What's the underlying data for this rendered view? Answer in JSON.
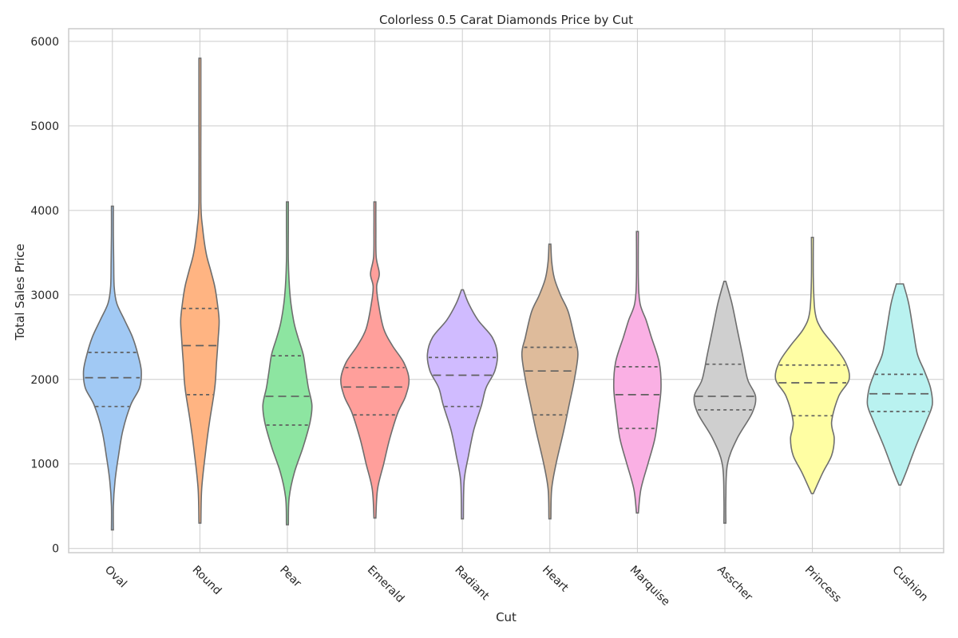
{
  "chart_data": {
    "type": "violin",
    "title": "Colorless 0.5 Carat Diamonds Price by Cut",
    "xlabel": "Cut",
    "ylabel": "Total Sales Price",
    "ylim": [
      -50,
      6150
    ],
    "yticks": [
      0,
      1000,
      2000,
      3000,
      4000,
      5000,
      6000
    ],
    "grid": true,
    "categories": [
      "Oval",
      "Round",
      "Pear",
      "Emerald",
      "Radiant",
      "Heart",
      "Marquise",
      "Asscher",
      "Princess",
      "Cushion"
    ],
    "colors": [
      "#a1c9f4",
      "#ffb482",
      "#8de5a1",
      "#ff9f9b",
      "#d0bbff",
      "#debb9b",
      "#fab0e4",
      "#cfcfcf",
      "#fffea3",
      "#b9f2f0"
    ],
    "series": [
      {
        "category": "Oval",
        "min": 220,
        "q1": 1680,
        "median": 2020,
        "q3": 2320,
        "max": 4050,
        "density": [
          [
            220,
            0.3
          ],
          [
            500,
            1
          ],
          [
            800,
            3
          ],
          [
            1100,
            7
          ],
          [
            1400,
            12
          ],
          [
            1700,
            21
          ],
          [
            1900,
            31
          ],
          [
            2100,
            33
          ],
          [
            2300,
            29
          ],
          [
            2500,
            23
          ],
          [
            2700,
            14
          ],
          [
            2900,
            5
          ],
          [
            3100,
            2
          ],
          [
            3400,
            1.5
          ],
          [
            3700,
            1
          ],
          [
            4050,
            0.3
          ]
        ]
      },
      {
        "category": "Round",
        "min": 300,
        "q1": 1820,
        "median": 2400,
        "q3": 2840,
        "max": 5800,
        "density": [
          [
            300,
            0.3
          ],
          [
            700,
            2
          ],
          [
            1100,
            6
          ],
          [
            1500,
            11
          ],
          [
            1900,
            17
          ],
          [
            2200,
            19
          ],
          [
            2500,
            21
          ],
          [
            2700,
            22
          ],
          [
            2900,
            20
          ],
          [
            3100,
            17
          ],
          [
            3300,
            12
          ],
          [
            3500,
            7
          ],
          [
            3800,
            3
          ],
          [
            4100,
            1
          ],
          [
            5000,
            0.8
          ],
          [
            5800,
            0.3
          ]
        ]
      },
      {
        "category": "Pear",
        "min": 280,
        "q1": 1460,
        "median": 1800,
        "q3": 2280,
        "max": 4100,
        "density": [
          [
            280,
            0.3
          ],
          [
            600,
            2
          ],
          [
            900,
            8
          ],
          [
            1200,
            18
          ],
          [
            1500,
            26
          ],
          [
            1700,
            28
          ],
          [
            1900,
            24
          ],
          [
            2100,
            21
          ],
          [
            2300,
            18
          ],
          [
            2500,
            12
          ],
          [
            2700,
            7
          ],
          [
            3000,
            3
          ],
          [
            3400,
            1
          ],
          [
            3800,
            0.8
          ],
          [
            4100,
            0.3
          ]
        ]
      },
      {
        "category": "Emerald",
        "min": 360,
        "q1": 1580,
        "median": 1910,
        "q3": 2140,
        "max": 4100,
        "density": [
          [
            360,
            0.3
          ],
          [
            700,
            3
          ],
          [
            1000,
            10
          ],
          [
            1300,
            17
          ],
          [
            1600,
            26
          ],
          [
            1800,
            35
          ],
          [
            2000,
            39
          ],
          [
            2200,
            33
          ],
          [
            2400,
            20
          ],
          [
            2600,
            10
          ],
          [
            2900,
            4
          ],
          [
            3100,
            2
          ],
          [
            3250,
            5
          ],
          [
            3450,
            1.5
          ],
          [
            3800,
            0.8
          ],
          [
            4100,
            0.3
          ]
        ]
      },
      {
        "category": "Radiant",
        "min": 350,
        "q1": 1680,
        "median": 2050,
        "q3": 2260,
        "max": 3060,
        "density": [
          [
            350,
            0.3
          ],
          [
            800,
            2
          ],
          [
            1100,
            7
          ],
          [
            1400,
            13
          ],
          [
            1700,
            22
          ],
          [
            1900,
            27
          ],
          [
            2100,
            37
          ],
          [
            2300,
            40
          ],
          [
            2500,
            34
          ],
          [
            2700,
            18
          ],
          [
            2900,
            7
          ],
          [
            3060,
            0.5
          ]
        ]
      },
      {
        "category": "Heart",
        "min": 350,
        "q1": 1580,
        "median": 2100,
        "q3": 2380,
        "max": 3600,
        "density": [
          [
            350,
            0.3
          ],
          [
            700,
            2
          ],
          [
            1000,
            7
          ],
          [
            1400,
            16
          ],
          [
            1700,
            22
          ],
          [
            2000,
            28
          ],
          [
            2300,
            32
          ],
          [
            2500,
            28
          ],
          [
            2800,
            21
          ],
          [
            3000,
            12
          ],
          [
            3200,
            5
          ],
          [
            3400,
            2
          ],
          [
            3600,
            0.3
          ]
        ]
      },
      {
        "category": "Marquise",
        "min": 420,
        "q1": 1420,
        "median": 1820,
        "q3": 2150,
        "max": 3750,
        "density": [
          [
            420,
            0.3
          ],
          [
            700,
            4
          ],
          [
            1000,
            12
          ],
          [
            1300,
            20
          ],
          [
            1600,
            24
          ],
          [
            1900,
            27
          ],
          [
            2200,
            25
          ],
          [
            2500,
            16
          ],
          [
            2700,
            10
          ],
          [
            2900,
            3
          ],
          [
            3200,
            1
          ],
          [
            3750,
            0.3
          ]
        ]
      },
      {
        "category": "Asscher",
        "min": 300,
        "q1": 1640,
        "median": 1800,
        "q3": 2180,
        "max": 3160,
        "density": [
          [
            300,
            0.3
          ],
          [
            600,
            1
          ],
          [
            1000,
            3
          ],
          [
            1300,
            14
          ],
          [
            1600,
            31
          ],
          [
            1800,
            35
          ],
          [
            2000,
            26
          ],
          [
            2300,
            20
          ],
          [
            2600,
            14
          ],
          [
            2900,
            8
          ],
          [
            3160,
            1
          ]
        ]
      },
      {
        "category": "Princess",
        "min": 650,
        "q1": 1570,
        "median": 1960,
        "q3": 2170,
        "max": 3680,
        "density": [
          [
            650,
            0.3
          ],
          [
            900,
            12
          ],
          [
            1100,
            22
          ],
          [
            1300,
            25
          ],
          [
            1500,
            22
          ],
          [
            1800,
            30
          ],
          [
            2000,
            42
          ],
          [
            2200,
            38
          ],
          [
            2400,
            25
          ],
          [
            2600,
            10
          ],
          [
            2800,
            3
          ],
          [
            3200,
            1
          ],
          [
            3680,
            0.3
          ]
        ]
      },
      {
        "category": "Cushion",
        "min": 750,
        "q1": 1620,
        "median": 1830,
        "q3": 2060,
        "max": 3130,
        "density": [
          [
            750,
            1
          ],
          [
            900,
            7
          ],
          [
            1200,
            18
          ],
          [
            1500,
            30
          ],
          [
            1700,
            37
          ],
          [
            1900,
            35
          ],
          [
            2100,
            28
          ],
          [
            2300,
            20
          ],
          [
            2600,
            15
          ],
          [
            2900,
            10
          ],
          [
            3130,
            4
          ]
        ]
      }
    ]
  }
}
